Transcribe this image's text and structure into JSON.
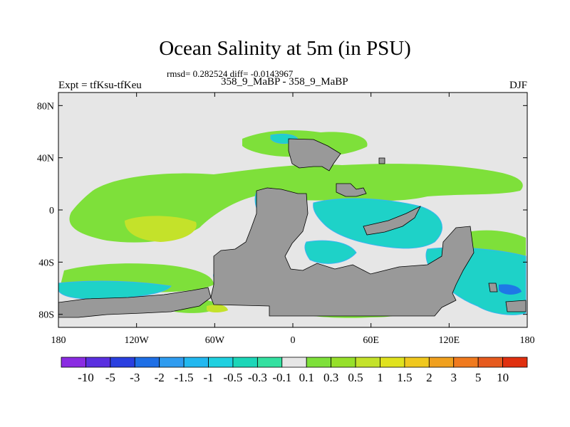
{
  "title": "Ocean Salinity at 5m (in PSU)",
  "stats_line": "rmsd= 0.282524  diff= -0.0143967",
  "experiment_label": "Expt = tfKsu-tfKeu",
  "runs_label": "358_9_MaBP - 358_9_MaBP",
  "season_label": "DJF",
  "map": {
    "lon_range": [
      -180,
      180
    ],
    "lat_range": [
      -90,
      90
    ],
    "x_ticks": [
      {
        "value": -180,
        "label": "180"
      },
      {
        "value": -120,
        "label": "120W"
      },
      {
        "value": -60,
        "label": "60W"
      },
      {
        "value": 0,
        "label": "0"
      },
      {
        "value": 60,
        "label": "60E"
      },
      {
        "value": 120,
        "label": "120E"
      },
      {
        "value": 180,
        "label": "180"
      }
    ],
    "y_ticks": [
      {
        "value": 80,
        "label": "80N"
      },
      {
        "value": 40,
        "label": "40N"
      },
      {
        "value": 0,
        "label": "0"
      },
      {
        "value": -40,
        "label": "40S"
      },
      {
        "value": -80,
        "label": "80S"
      }
    ],
    "colors": {
      "background": "#e6e6e6",
      "land": "#999999",
      "green": "#7ee03a",
      "yellow_green": "#c4e22a",
      "cyan": "#1ed2c8",
      "light_blue": "#3bb4f0",
      "blue": "#1e78e6"
    }
  },
  "colorbar": {
    "colors": [
      "#8a2be2",
      "#5a2fe0",
      "#2a3fe0",
      "#1e6fe6",
      "#2f9cf0",
      "#22b8f0",
      "#1fd0e0",
      "#1cd6b8",
      "#33e0a0",
      "#e6e6e6",
      "#7ee03a",
      "#96e02a",
      "#c4e22a",
      "#e0e21e",
      "#f0c81e",
      "#f0a01e",
      "#f07a1e",
      "#e65a1e",
      "#e0300f"
    ],
    "labels": [
      "-10",
      "-5",
      "-3",
      "-2",
      "-1.5",
      "-1",
      "-0.5",
      "-0.3",
      "-0.1",
      "0.1",
      "0.3",
      "0.5",
      "1",
      "1.5",
      "2",
      "3",
      "5",
      "10"
    ]
  }
}
